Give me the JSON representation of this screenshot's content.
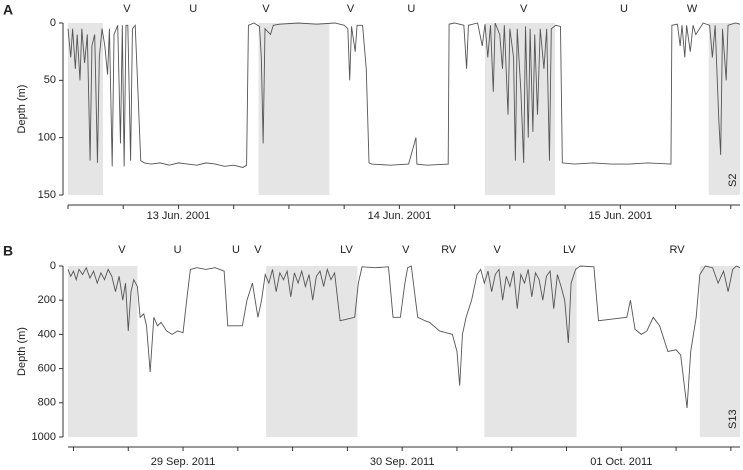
{
  "chart_data": [
    {
      "type": "line",
      "panel_label": "A",
      "y_label": "Depth (m)",
      "site_label": "S2",
      "color": "#555555",
      "shade_color": "#e5e5e5",
      "y_inverted": true,
      "ylim": [
        0,
        150
      ],
      "yticks": [
        0,
        50,
        100,
        150
      ],
      "xlim": [
        0,
        73
      ],
      "xticks": [
        {
          "value": 12,
          "label": "13 Jun. 2001"
        },
        {
          "value": 36,
          "label": "14 Jun. 2001"
        },
        {
          "value": 60,
          "label": "15 Jun. 2001"
        }
      ],
      "xminor_ticks": [
        0,
        6,
        18,
        24,
        30,
        42,
        48,
        54,
        66,
        72
      ],
      "shaded": [
        [
          0,
          3.8
        ],
        [
          20.7,
          28.4
        ],
        [
          45.3,
          52.9
        ],
        [
          69.6,
          73
        ]
      ],
      "annotations": [
        {
          "x": 6.4,
          "text": "V"
        },
        {
          "x": 13.6,
          "text": "U"
        },
        {
          "x": 21.5,
          "text": "V"
        },
        {
          "x": 30.7,
          "text": "V"
        },
        {
          "x": 37.3,
          "text": "U"
        },
        {
          "x": 49.5,
          "text": "V"
        },
        {
          "x": 60.4,
          "text": "U"
        },
        {
          "x": 67.8,
          "text": "W"
        }
      ],
      "x": [
        0,
        0.3,
        0.5,
        0.8,
        1.0,
        1.3,
        1.5,
        1.8,
        2.1,
        2.4,
        2.6,
        2.9,
        3.2,
        3.4,
        3.7,
        4.0,
        4.3,
        4.5,
        4.8,
        5.0,
        5.4,
        5.7,
        5.9,
        6.1,
        6.3,
        6.5,
        6.8,
        7.0,
        7.3,
        7.6,
        7.9,
        8.3,
        9,
        10,
        11,
        12,
        13,
        14,
        15,
        16,
        17,
        18,
        19,
        19.4,
        19.6,
        20.2,
        20.8,
        21.0,
        21.2,
        21.4,
        22,
        22.3,
        23,
        25,
        27,
        29,
        30,
        30.4,
        30.6,
        30.8,
        31.2,
        31.4,
        32,
        32.4,
        32.7,
        33,
        35,
        37,
        37.8,
        37.9,
        39,
        41.3,
        41.4,
        42,
        43,
        43.3,
        43.5,
        44.5,
        45,
        45.3,
        45.6,
        45.9,
        46.2,
        46.4,
        46.9,
        47.2,
        47.4,
        47.8,
        48,
        48.4,
        48.6,
        48.8,
        49.2,
        49.5,
        49.7,
        50,
        50.2,
        50.5,
        50.7,
        51.0,
        51.3,
        51.7,
        52.0,
        52.3,
        52.5,
        53,
        53.5,
        53.7,
        55,
        57,
        59,
        61,
        63,
        65.5,
        65.6,
        66.2,
        66.5,
        66.7,
        67,
        67.2,
        67.6,
        67.9,
        68.2,
        69,
        69.7,
        70,
        70.3,
        70.7,
        70.9,
        71.1,
        71.5,
        71.7,
        72.5,
        73
      ],
      "values": [
        5,
        30,
        5,
        40,
        10,
        50,
        5,
        35,
        10,
        120,
        20,
        10,
        122,
        30,
        5,
        20,
        45,
        5,
        125,
        10,
        2,
        105,
        2,
        125,
        2,
        2,
        120,
        5,
        2,
        60,
        120,
        122,
        123,
        122,
        124,
        122,
        123,
        124,
        122,
        123,
        125,
        124,
        126,
        124,
        2,
        0,
        3,
        30,
        105,
        5,
        10,
        2,
        1,
        0,
        1,
        0,
        2,
        5,
        50,
        3,
        25,
        2,
        2,
        40,
        122,
        123,
        124,
        123,
        100,
        123,
        124,
        123,
        1,
        0,
        2,
        40,
        2,
        0,
        20,
        1,
        30,
        2,
        60,
        0,
        10,
        40,
        2,
        80,
        5,
        30,
        120,
        5,
        60,
        122,
        3,
        100,
        5,
        95,
        10,
        80,
        5,
        40,
        5,
        120,
        5,
        2,
        3,
        122,
        123,
        122,
        123,
        123,
        122,
        123,
        2,
        1,
        20,
        2,
        30,
        2,
        25,
        2,
        10,
        0,
        2,
        30,
        2,
        85,
        115,
        5,
        50,
        2,
        0,
        1
      ]
    },
    {
      "type": "line",
      "panel_label": "B",
      "y_label": "Depth (m)",
      "site_label": "S13",
      "color": "#555555",
      "shade_color": "#e5e5e5",
      "y_inverted": true,
      "ylim": [
        0,
        1000
      ],
      "yticks": [
        0,
        200,
        400,
        600,
        800,
        1000
      ],
      "xlim": [
        -0.6,
        73
      ],
      "xticks": [
        {
          "value": 12,
          "label": "29 Sep. 2011"
        },
        {
          "value": 36,
          "label": "30 Sep. 2011"
        },
        {
          "value": 60,
          "label": "01 Oct. 2011"
        }
      ],
      "xminor_ticks": [
        0,
        6,
        18,
        24,
        30,
        42,
        48,
        54,
        66,
        72
      ],
      "shaded": [
        [
          -0.6,
          7
        ],
        [
          21.1,
          31.1
        ],
        [
          45,
          55.1
        ],
        [
          68.6,
          73
        ]
      ],
      "annotations": [
        {
          "x": 5.3,
          "text": "V"
        },
        {
          "x": 11.4,
          "text": "U"
        },
        {
          "x": 17.8,
          "text": "U"
        },
        {
          "x": 20.2,
          "text": "V"
        },
        {
          "x": 29.9,
          "text": "LV"
        },
        {
          "x": 36.4,
          "text": "V"
        },
        {
          "x": 41.1,
          "text": "RV"
        },
        {
          "x": 46.4,
          "text": "V"
        },
        {
          "x": 54.3,
          "text": "LV"
        },
        {
          "x": 66.1,
          "text": "RV"
        }
      ],
      "x": [
        -0.6,
        -0.3,
        0,
        0.3,
        0.6,
        1,
        1.4,
        1.8,
        2.2,
        2.6,
        3,
        3.4,
        3.8,
        4.2,
        4.6,
        5,
        5.4,
        5.7,
        6,
        6.3,
        6.6,
        7,
        7.3,
        7.7,
        8,
        8.4,
        8.8,
        9.2,
        9.6,
        10.2,
        10.8,
        11.4,
        12,
        12.4,
        12.8,
        13.5,
        14.5,
        15.5,
        16.5,
        16.9,
        18.5,
        19,
        19.6,
        20.2,
        20.6,
        21,
        21.4,
        21.8,
        22.2,
        22.6,
        23,
        23.4,
        23.8,
        24.2,
        24.6,
        25,
        25.4,
        25.8,
        26.2,
        26.6,
        27,
        27.4,
        27.8,
        28.2,
        28.6,
        29.2,
        30,
        30.8,
        31.2,
        31.6,
        33,
        34.5,
        35,
        35.8,
        36.3,
        36.6,
        37,
        37.7,
        38.5,
        39,
        40.1,
        40.8,
        41.5,
        42,
        42.3,
        42.6,
        43,
        43.6,
        44.2,
        44.6,
        45,
        45.4,
        45.8,
        46.2,
        46.6,
        47,
        47.4,
        47.8,
        48.2,
        48.6,
        49,
        49.4,
        49.8,
        50.2,
        50.6,
        51,
        51.4,
        51.8,
        52.2,
        52.6,
        53,
        53.4,
        53.8,
        54.2,
        54.5,
        55,
        55.5,
        57,
        57.5,
        59,
        60.6,
        61,
        61.5,
        62.2,
        62.8,
        63.5,
        64.2,
        65.1,
        66,
        66.5,
        67.2,
        67.6,
        68.2,
        68.6,
        69.2,
        70,
        70.6,
        71.2,
        71.7,
        72.2,
        72.6,
        73
      ],
      "values": [
        20,
        60,
        30,
        80,
        20,
        50,
        10,
        70,
        30,
        100,
        40,
        80,
        20,
        60,
        150,
        60,
        200,
        100,
        380,
        150,
        80,
        120,
        300,
        280,
        350,
        620,
        300,
        350,
        330,
        380,
        400,
        380,
        390,
        200,
        20,
        10,
        20,
        10,
        30,
        350,
        350,
        200,
        100,
        300,
        200,
        50,
        100,
        20,
        150,
        40,
        80,
        30,
        180,
        40,
        100,
        30,
        120,
        50,
        200,
        60,
        30,
        120,
        20,
        80,
        40,
        320,
        310,
        300,
        100,
        5,
        10,
        5,
        300,
        300,
        100,
        10,
        0,
        300,
        320,
        330,
        380,
        390,
        400,
        500,
        700,
        400,
        300,
        200,
        50,
        20,
        100,
        30,
        150,
        50,
        20,
        200,
        60,
        120,
        30,
        250,
        50,
        100,
        20,
        180,
        40,
        80,
        200,
        60,
        30,
        250,
        50,
        120,
        200,
        450,
        100,
        20,
        0,
        5,
        320,
        310,
        300,
        200,
        370,
        400,
        380,
        300,
        350,
        500,
        490,
        520,
        830,
        500,
        300,
        50,
        0,
        10,
        100,
        30,
        150,
        20,
        0,
        10
      ]
    }
  ]
}
